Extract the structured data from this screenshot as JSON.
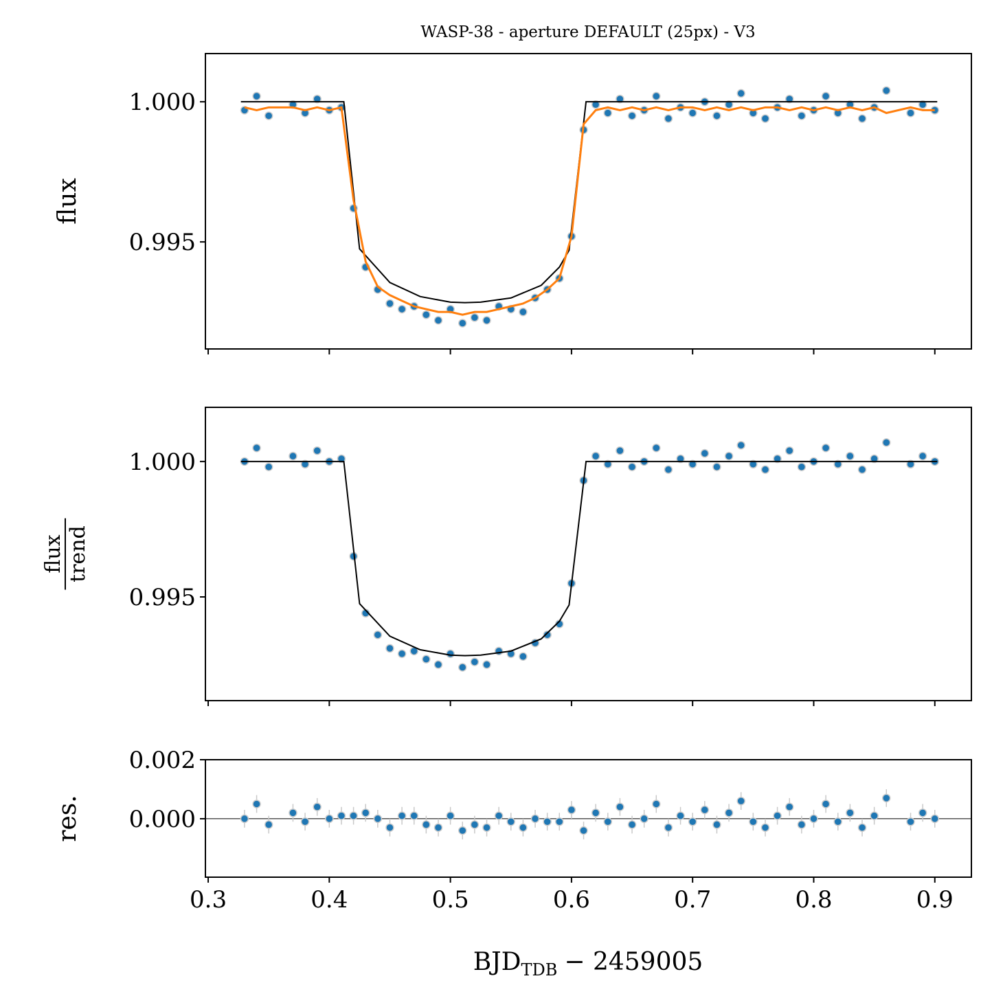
{
  "chart_data": [
    {
      "type": "scatter",
      "title": "WASP-38 - aperture DEFAULT (25px) - V3",
      "ylabel": "flux",
      "xlim": [
        0.2977,
        0.9302
      ],
      "xticks": [
        0.3,
        0.4,
        0.5,
        0.6,
        0.7,
        0.8,
        0.9
      ],
      "ylim": [
        0.99118,
        1.00172
      ],
      "yticks": [
        0.995,
        {
          "value": 1,
          "label": "1.000"
        }
      ],
      "series": [
        {
          "style": "points",
          "color": "#1f77b4",
          "x": [
            0.33,
            0.34,
            0.35,
            0.37,
            0.38,
            0.39,
            0.4,
            0.41,
            0.42,
            0.43,
            0.44,
            0.45,
            0.46,
            0.47,
            0.48,
            0.49,
            0.5,
            0.51,
            0.52,
            0.53,
            0.54,
            0.55,
            0.56,
            0.57,
            0.58,
            0.59,
            0.6,
            0.61,
            0.62,
            0.63,
            0.64,
            0.65,
            0.66,
            0.67,
            0.68,
            0.69,
            0.7,
            0.71,
            0.72,
            0.73,
            0.74,
            0.75,
            0.76,
            0.77,
            0.78,
            0.79,
            0.8,
            0.81,
            0.82,
            0.83,
            0.84,
            0.85,
            0.86,
            0.88,
            0.89,
            0.9
          ],
          "values": [
            0.9997,
            1.0002,
            0.9995,
            0.9999,
            0.9996,
            1.0001,
            0.9997,
            0.9998,
            0.9962,
            0.9941,
            0.9933,
            0.9928,
            0.9926,
            0.9927,
            0.9924,
            0.9922,
            0.9926,
            0.9921,
            0.9923,
            0.9922,
            0.9927,
            0.9926,
            0.9925,
            0.993,
            0.9933,
            0.9937,
            0.9952,
            0.999,
            0.9999,
            0.9996,
            1.0001,
            0.9995,
            0.9997,
            1.0002,
            0.9994,
            0.9998,
            0.9996,
            1.0,
            0.9995,
            0.9999,
            1.0003,
            0.9996,
            0.9994,
            0.9998,
            1.0001,
            0.9995,
            0.9997,
            1.0002,
            0.9996,
            0.9999,
            0.9994,
            0.9998,
            1.0004,
            0.9996,
            0.9999,
            0.9997
          ]
        },
        {
          "style": "line",
          "color": "#000000",
          "x": [
            0.327,
            0.412,
            0.425,
            0.45,
            0.475,
            0.5,
            0.512,
            0.525,
            0.55,
            0.575,
            0.59,
            0.598,
            0.612,
            0.902
          ],
          "values": [
            1,
            1,
            0.99475,
            0.99355,
            0.99305,
            0.99285,
            0.99283,
            0.99285,
            0.993,
            0.99345,
            0.9941,
            0.9947,
            1,
            1
          ]
        },
        {
          "style": "line",
          "color": "#ff7f0e",
          "x": [
            0.33,
            0.34,
            0.35,
            0.37,
            0.38,
            0.39,
            0.4,
            0.41,
            0.42,
            0.43,
            0.44,
            0.45,
            0.46,
            0.47,
            0.48,
            0.49,
            0.5,
            0.51,
            0.52,
            0.53,
            0.54,
            0.55,
            0.56,
            0.57,
            0.58,
            0.59,
            0.6,
            0.61,
            0.62,
            0.63,
            0.64,
            0.65,
            0.66,
            0.67,
            0.68,
            0.69,
            0.7,
            0.71,
            0.72,
            0.73,
            0.74,
            0.75,
            0.76,
            0.77,
            0.78,
            0.79,
            0.8,
            0.81,
            0.82,
            0.83,
            0.84,
            0.85,
            0.86,
            0.88,
            0.89,
            0.9
          ],
          "values": [
            0.9998,
            0.9997,
            0.9998,
            0.9998,
            0.9997,
            0.9998,
            0.9997,
            0.9998,
            0.9965,
            0.9943,
            0.9934,
            0.9931,
            0.9929,
            0.9927,
            0.9926,
            0.9925,
            0.9925,
            0.9924,
            0.9925,
            0.9925,
            0.9926,
            0.9927,
            0.9928,
            0.993,
            0.9933,
            0.9937,
            0.9952,
            0.9992,
            0.9997,
            0.9998,
            0.9997,
            0.9998,
            0.9997,
            0.9998,
            0.9997,
            0.9998,
            0.9998,
            0.9997,
            0.9998,
            0.9997,
            0.9998,
            0.9997,
            0.9998,
            0.9998,
            0.9997,
            0.9998,
            0.9997,
            0.9998,
            0.9997,
            0.9998,
            0.9997,
            0.9998,
            0.9996,
            0.9998,
            0.9997,
            0.9997
          ]
        }
      ]
    },
    {
      "type": "scatter",
      "ylabel": {
        "numerator": "flux",
        "denominator": "trend"
      },
      "xlim": [
        0.2977,
        0.9302
      ],
      "xticks": [
        0.3,
        0.4,
        0.5,
        0.6,
        0.7,
        0.8,
        0.9
      ],
      "ylim": [
        0.99117,
        1.002
      ],
      "yticks": [
        0.995,
        {
          "value": 1,
          "label": "1.000"
        }
      ],
      "series": [
        {
          "style": "points",
          "color": "#1f77b4",
          "x": [
            0.33,
            0.34,
            0.35,
            0.37,
            0.38,
            0.39,
            0.4,
            0.41,
            0.42,
            0.43,
            0.44,
            0.45,
            0.46,
            0.47,
            0.48,
            0.49,
            0.5,
            0.51,
            0.52,
            0.53,
            0.54,
            0.55,
            0.56,
            0.57,
            0.58,
            0.59,
            0.6,
            0.61,
            0.62,
            0.63,
            0.64,
            0.65,
            0.66,
            0.67,
            0.68,
            0.69,
            0.7,
            0.71,
            0.72,
            0.73,
            0.74,
            0.75,
            0.76,
            0.77,
            0.78,
            0.79,
            0.8,
            0.81,
            0.82,
            0.83,
            0.84,
            0.85,
            0.86,
            0.88,
            0.89,
            0.9
          ],
          "values": [
            1.0,
            1.0005,
            0.9998,
            1.0002,
            0.9999,
            1.0004,
            1.0,
            1.0001,
            0.9965,
            0.9944,
            0.9936,
            0.9931,
            0.9929,
            0.993,
            0.9927,
            0.9925,
            0.9929,
            0.9924,
            0.9926,
            0.9925,
            0.993,
            0.9929,
            0.9928,
            0.9933,
            0.9936,
            0.994,
            0.9955,
            0.9993,
            1.0002,
            0.9999,
            1.0004,
            0.9998,
            1.0,
            1.0005,
            0.9997,
            1.0001,
            0.9999,
            1.0003,
            0.9998,
            1.0002,
            1.0006,
            0.9999,
            0.9997,
            1.0001,
            1.0004,
            0.9998,
            1.0,
            1.0005,
            0.9999,
            1.0002,
            0.9997,
            1.0001,
            1.0007,
            0.9999,
            1.0002,
            1.0
          ]
        },
        {
          "style": "line",
          "color": "#000000",
          "x": [
            0.327,
            0.412,
            0.425,
            0.45,
            0.475,
            0.5,
            0.512,
            0.525,
            0.55,
            0.575,
            0.59,
            0.598,
            0.612,
            0.902
          ],
          "values": [
            1,
            1,
            0.99475,
            0.99355,
            0.99305,
            0.99285,
            0.99283,
            0.99285,
            0.993,
            0.99345,
            0.9941,
            0.9947,
            1,
            1
          ]
        }
      ]
    },
    {
      "type": "scatter",
      "ylabel": "res.",
      "xlabel": {
        "main": "BJD",
        "sub": "TDB",
        "rest": "− 2459005"
      },
      "xlim": [
        0.2977,
        0.9302
      ],
      "xticks": [
        0.3,
        0.4,
        0.5,
        0.6,
        0.7,
        0.8,
        0.9
      ],
      "ylim": [
        -0.00198,
        0.002
      ],
      "yticks": [
        {
          "value": 0,
          "label": "0.000"
        },
        0.002
      ],
      "hline": 0,
      "yerr": 0.0003,
      "series": [
        {
          "style": "points",
          "color": "#1f77b4",
          "x": [
            0.33,
            0.34,
            0.35,
            0.37,
            0.38,
            0.39,
            0.4,
            0.41,
            0.42,
            0.43,
            0.44,
            0.45,
            0.46,
            0.47,
            0.48,
            0.49,
            0.5,
            0.51,
            0.52,
            0.53,
            0.54,
            0.55,
            0.56,
            0.57,
            0.58,
            0.59,
            0.6,
            0.61,
            0.62,
            0.63,
            0.64,
            0.65,
            0.66,
            0.67,
            0.68,
            0.69,
            0.7,
            0.71,
            0.72,
            0.73,
            0.74,
            0.75,
            0.76,
            0.77,
            0.78,
            0.79,
            0.8,
            0.81,
            0.82,
            0.83,
            0.84,
            0.85,
            0.86,
            0.88,
            0.89,
            0.9
          ],
          "values": [
            0.0,
            0.0005,
            -0.0002,
            0.0002,
            -0.0001,
            0.0004,
            0.0,
            0.0001,
            0.0001,
            0.0002,
            0.0,
            -0.0003,
            0.0001,
            0.0001,
            -0.0002,
            -0.0003,
            0.0001,
            -0.0004,
            -0.0002,
            -0.0003,
            0.0001,
            -0.0001,
            -0.0003,
            0.0,
            -0.0001,
            -0.0001,
            0.0003,
            -0.0004,
            0.0002,
            -0.0001,
            0.0004,
            -0.0002,
            0.0,
            0.0005,
            -0.0003,
            0.0001,
            -0.0001,
            0.0003,
            -0.0002,
            0.0002,
            0.0006,
            -0.0001,
            -0.0003,
            0.0001,
            0.0004,
            -0.0002,
            0.0,
            0.0005,
            -0.0001,
            0.0002,
            -0.0003,
            0.0001,
            0.0007,
            -0.0001,
            0.0002,
            0.0
          ]
        }
      ]
    }
  ]
}
